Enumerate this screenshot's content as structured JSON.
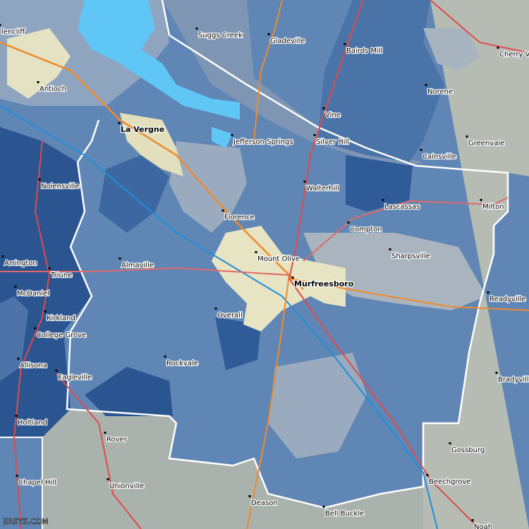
{
  "places": [
    {
      "name": "lencliff"
    },
    {
      "name": "Suggs Creek"
    },
    {
      "name": "Gladeville"
    },
    {
      "name": "Bairds Mill"
    },
    {
      "name": "Cherry V"
    },
    {
      "name": "Antioch"
    },
    {
      "name": "Norene"
    },
    {
      "name": "Vine"
    },
    {
      "name": "La Vergne"
    },
    {
      "name": "Jefferson Springs"
    },
    {
      "name": "Silver Hill"
    },
    {
      "name": "Greenvale"
    },
    {
      "name": "Cainsville"
    },
    {
      "name": "Nolensville"
    },
    {
      "name": "Walterhill"
    },
    {
      "name": "Lascassas"
    },
    {
      "name": "Milton"
    },
    {
      "name": "Florence"
    },
    {
      "name": "Compton"
    },
    {
      "name": "Sharpsville"
    },
    {
      "name": "Mount Olive"
    },
    {
      "name": "Arrington"
    },
    {
      "name": "Almaville"
    },
    {
      "name": "Triune"
    },
    {
      "name": "Murfreesboro"
    },
    {
      "name": "McDaniel"
    },
    {
      "name": "Readyville"
    },
    {
      "name": "Overall"
    },
    {
      "name": "Kirkland"
    },
    {
      "name": "College Grove"
    },
    {
      "name": "Rockvale"
    },
    {
      "name": "Allisona"
    },
    {
      "name": "Eagleville"
    },
    {
      "name": "Bradyville"
    },
    {
      "name": "Holtland"
    },
    {
      "name": "Rover"
    },
    {
      "name": "Gossburg"
    },
    {
      "name": "Chapel Hill"
    },
    {
      "name": "Beechgrove"
    },
    {
      "name": "Unionville"
    },
    {
      "name": "Deason"
    },
    {
      "name": "Bell Buckle"
    },
    {
      "name": "Noah"
    }
  ],
  "watermark": "ERSYS.COM"
}
